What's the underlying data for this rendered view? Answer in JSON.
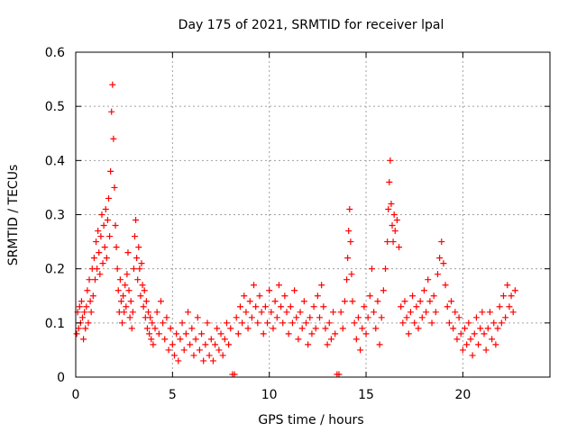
{
  "chart_data": {
    "type": "scatter",
    "title": "Day 175 of 2021, SRMTID for receiver lpal",
    "xlabel": "GPS time / hours",
    "ylabel": "SRMTID / TECUs",
    "xlim": [
      0,
      24.5
    ],
    "ylim": [
      0,
      0.6
    ],
    "xticks": [
      0,
      5,
      10,
      15,
      20
    ],
    "xtick_labels": [
      "0",
      "5",
      "10",
      "15",
      "20"
    ],
    "yticks": [
      0,
      0.1,
      0.2,
      0.3,
      0.4,
      0.5,
      0.6
    ],
    "ytick_labels": [
      "0",
      "0.1",
      "0.2",
      "0.3",
      "0.4",
      "0.5",
      "0.6"
    ],
    "grid": true,
    "marker": "+",
    "color": "#ff0000",
    "series": [
      {
        "name": "SRMTID",
        "points": [
          [
            0.05,
            0.08
          ],
          [
            0.1,
            0.12
          ],
          [
            0.15,
            0.09
          ],
          [
            0.2,
            0.13
          ],
          [
            0.25,
            0.1
          ],
          [
            0.3,
            0.14
          ],
          [
            0.35,
            0.11
          ],
          [
            0.4,
            0.07
          ],
          [
            0.45,
            0.12
          ],
          [
            0.5,
            0.09
          ],
          [
            0.55,
            0.13
          ],
          [
            0.6,
            0.16
          ],
          [
            0.65,
            0.1
          ],
          [
            0.7,
            0.18
          ],
          [
            0.75,
            0.14
          ],
          [
            0.8,
            0.12
          ],
          [
            0.85,
            0.2
          ],
          [
            0.9,
            0.15
          ],
          [
            0.95,
            0.22
          ],
          [
            1.0,
            0.18
          ],
          [
            1.05,
            0.25
          ],
          [
            1.1,
            0.2
          ],
          [
            1.15,
            0.27
          ],
          [
            1.2,
            0.23
          ],
          [
            1.25,
            0.19
          ],
          [
            1.3,
            0.26
          ],
          [
            1.35,
            0.3
          ],
          [
            1.4,
            0.21
          ],
          [
            1.45,
            0.28
          ],
          [
            1.5,
            0.24
          ],
          [
            1.55,
            0.31
          ],
          [
            1.6,
            0.22
          ],
          [
            1.65,
            0.29
          ],
          [
            1.7,
            0.33
          ],
          [
            1.75,
            0.26
          ],
          [
            1.8,
            0.38
          ],
          [
            1.85,
            0.49
          ],
          [
            1.9,
            0.54
          ],
          [
            1.95,
            0.44
          ],
          [
            2.0,
            0.35
          ],
          [
            2.05,
            0.28
          ],
          [
            2.1,
            0.24
          ],
          [
            2.15,
            0.2
          ],
          [
            2.2,
            0.16
          ],
          [
            2.25,
            0.12
          ],
          [
            2.3,
            0.18
          ],
          [
            2.35,
            0.14
          ],
          [
            2.4,
            0.1
          ],
          [
            2.45,
            0.15
          ],
          [
            2.5,
            0.12
          ],
          [
            2.55,
            0.17
          ],
          [
            2.6,
            0.13
          ],
          [
            2.65,
            0.19
          ],
          [
            2.7,
            0.23
          ],
          [
            2.75,
            0.16
          ],
          [
            2.8,
            0.11
          ],
          [
            2.85,
            0.14
          ],
          [
            2.9,
            0.09
          ],
          [
            2.95,
            0.12
          ],
          [
            3.0,
            0.2
          ],
          [
            3.05,
            0.26
          ],
          [
            3.1,
            0.29
          ],
          [
            3.15,
            0.22
          ],
          [
            3.2,
            0.18
          ],
          [
            3.25,
            0.24
          ],
          [
            3.3,
            0.2
          ],
          [
            3.35,
            0.15
          ],
          [
            3.4,
            0.21
          ],
          [
            3.45,
            0.17
          ],
          [
            3.5,
            0.13
          ],
          [
            3.55,
            0.16
          ],
          [
            3.6,
            0.11
          ],
          [
            3.65,
            0.14
          ],
          [
            3.7,
            0.09
          ],
          [
            3.75,
            0.12
          ],
          [
            3.8,
            0.08
          ],
          [
            3.85,
            0.11
          ],
          [
            3.9,
            0.07
          ],
          [
            3.95,
            0.1
          ],
          [
            4.0,
            0.06
          ],
          [
            4.1,
            0.09
          ],
          [
            4.2,
            0.12
          ],
          [
            4.3,
            0.08
          ],
          [
            4.4,
            0.14
          ],
          [
            4.5,
            0.1
          ],
          [
            4.6,
            0.07
          ],
          [
            4.7,
            0.11
          ],
          [
            4.8,
            0.05
          ],
          [
            4.9,
            0.09
          ],
          [
            5.0,
            0.06
          ],
          [
            5.1,
            0.04
          ],
          [
            5.2,
            0.08
          ],
          [
            5.3,
            0.03
          ],
          [
            5.4,
            0.07
          ],
          [
            5.5,
            0.1
          ],
          [
            5.6,
            0.05
          ],
          [
            5.7,
            0.08
          ],
          [
            5.8,
            0.12
          ],
          [
            5.9,
            0.06
          ],
          [
            6.0,
            0.09
          ],
          [
            6.1,
            0.04
          ],
          [
            6.2,
            0.07
          ],
          [
            6.3,
            0.11
          ],
          [
            6.4,
            0.05
          ],
          [
            6.5,
            0.08
          ],
          [
            6.6,
            0.03
          ],
          [
            6.7,
            0.06
          ],
          [
            6.8,
            0.1
          ],
          [
            6.9,
            0.04
          ],
          [
            7.0,
            0.07
          ],
          [
            7.1,
            0.03
          ],
          [
            7.2,
            0.06
          ],
          [
            7.3,
            0.09
          ],
          [
            7.4,
            0.05
          ],
          [
            7.5,
            0.08
          ],
          [
            7.6,
            0.04
          ],
          [
            7.7,
            0.07
          ],
          [
            7.8,
            0.1
          ],
          [
            7.9,
            0.06
          ],
          [
            8.0,
            0.09
          ],
          [
            8.1,
            0.005
          ],
          [
            8.2,
            0.005
          ],
          [
            8.3,
            0.11
          ],
          [
            8.4,
            0.08
          ],
          [
            8.5,
            0.13
          ],
          [
            8.6,
            0.1
          ],
          [
            8.7,
            0.15
          ],
          [
            8.8,
            0.12
          ],
          [
            8.9,
            0.09
          ],
          [
            9.0,
            0.14
          ],
          [
            9.1,
            0.11
          ],
          [
            9.2,
            0.17
          ],
          [
            9.3,
            0.13
          ],
          [
            9.4,
            0.1
          ],
          [
            9.5,
            0.15
          ],
          [
            9.6,
            0.12
          ],
          [
            9.7,
            0.08
          ],
          [
            9.8,
            0.13
          ],
          [
            9.9,
            0.1
          ],
          [
            10.0,
            0.16
          ],
          [
            10.1,
            0.12
          ],
          [
            10.2,
            0.09
          ],
          [
            10.3,
            0.14
          ],
          [
            10.4,
            0.11
          ],
          [
            10.5,
            0.17
          ],
          [
            10.6,
            0.13
          ],
          [
            10.7,
            0.1
          ],
          [
            10.8,
            0.15
          ],
          [
            10.9,
            0.12
          ],
          [
            11.0,
            0.08
          ],
          [
            11.1,
            0.13
          ],
          [
            11.2,
            0.1
          ],
          [
            11.3,
            0.16
          ],
          [
            11.4,
            0.11
          ],
          [
            11.5,
            0.07
          ],
          [
            11.6,
            0.12
          ],
          [
            11.7,
            0.09
          ],
          [
            11.8,
            0.14
          ],
          [
            11.9,
            0.1
          ],
          [
            12.0,
            0.06
          ],
          [
            12.1,
            0.11
          ],
          [
            12.2,
            0.08
          ],
          [
            12.3,
            0.13
          ],
          [
            12.4,
            0.09
          ],
          [
            12.5,
            0.15
          ],
          [
            12.6,
            0.11
          ],
          [
            12.7,
            0.17
          ],
          [
            12.8,
            0.13
          ],
          [
            12.9,
            0.09
          ],
          [
            13.0,
            0.06
          ],
          [
            13.1,
            0.1
          ],
          [
            13.2,
            0.07
          ],
          [
            13.3,
            0.12
          ],
          [
            13.4,
            0.08
          ],
          [
            13.5,
            0.005
          ],
          [
            13.6,
            0.005
          ],
          [
            13.7,
            0.12
          ],
          [
            13.8,
            0.09
          ],
          [
            13.9,
            0.14
          ],
          [
            14.0,
            0.18
          ],
          [
            14.05,
            0.22
          ],
          [
            14.1,
            0.27
          ],
          [
            14.15,
            0.31
          ],
          [
            14.2,
            0.25
          ],
          [
            14.25,
            0.19
          ],
          [
            14.3,
            0.14
          ],
          [
            14.4,
            0.1
          ],
          [
            14.5,
            0.07
          ],
          [
            14.6,
            0.11
          ],
          [
            14.7,
            0.05
          ],
          [
            14.8,
            0.09
          ],
          [
            14.9,
            0.13
          ],
          [
            15.0,
            0.08
          ],
          [
            15.1,
            0.11
          ],
          [
            15.2,
            0.15
          ],
          [
            15.3,
            0.2
          ],
          [
            15.4,
            0.12
          ],
          [
            15.5,
            0.09
          ],
          [
            15.6,
            0.14
          ],
          [
            15.7,
            0.06
          ],
          [
            15.8,
            0.11
          ],
          [
            15.9,
            0.16
          ],
          [
            16.0,
            0.2
          ],
          [
            16.1,
            0.25
          ],
          [
            16.15,
            0.31
          ],
          [
            16.2,
            0.36
          ],
          [
            16.25,
            0.4
          ],
          [
            16.3,
            0.32
          ],
          [
            16.35,
            0.28
          ],
          [
            16.4,
            0.25
          ],
          [
            16.45,
            0.3
          ],
          [
            16.5,
            0.27
          ],
          [
            16.6,
            0.29
          ],
          [
            16.7,
            0.24
          ],
          [
            16.8,
            0.13
          ],
          [
            16.9,
            0.1
          ],
          [
            17.0,
            0.14
          ],
          [
            17.1,
            0.11
          ],
          [
            17.2,
            0.08
          ],
          [
            17.3,
            0.12
          ],
          [
            17.4,
            0.15
          ],
          [
            17.5,
            0.1
          ],
          [
            17.6,
            0.13
          ],
          [
            17.7,
            0.09
          ],
          [
            17.8,
            0.14
          ],
          [
            17.9,
            0.11
          ],
          [
            18.0,
            0.16
          ],
          [
            18.1,
            0.12
          ],
          [
            18.2,
            0.18
          ],
          [
            18.3,
            0.14
          ],
          [
            18.4,
            0.1
          ],
          [
            18.5,
            0.15
          ],
          [
            18.6,
            0.12
          ],
          [
            18.7,
            0.19
          ],
          [
            18.8,
            0.22
          ],
          [
            18.9,
            0.25
          ],
          [
            19.0,
            0.21
          ],
          [
            19.1,
            0.17
          ],
          [
            19.2,
            0.13
          ],
          [
            19.3,
            0.1
          ],
          [
            19.4,
            0.14
          ],
          [
            19.5,
            0.09
          ],
          [
            19.6,
            0.12
          ],
          [
            19.7,
            0.07
          ],
          [
            19.8,
            0.11
          ],
          [
            19.9,
            0.08
          ],
          [
            20.0,
            0.05
          ],
          [
            20.1,
            0.09
          ],
          [
            20.2,
            0.06
          ],
          [
            20.3,
            0.1
          ],
          [
            20.4,
            0.07
          ],
          [
            20.5,
            0.04
          ],
          [
            20.6,
            0.08
          ],
          [
            20.7,
            0.11
          ],
          [
            20.8,
            0.06
          ],
          [
            20.9,
            0.09
          ],
          [
            21.0,
            0.12
          ],
          [
            21.1,
            0.08
          ],
          [
            21.2,
            0.05
          ],
          [
            21.3,
            0.09
          ],
          [
            21.4,
            0.12
          ],
          [
            21.5,
            0.07
          ],
          [
            21.6,
            0.1
          ],
          [
            21.7,
            0.06
          ],
          [
            21.8,
            0.09
          ],
          [
            21.9,
            0.13
          ],
          [
            22.0,
            0.1
          ],
          [
            22.1,
            0.15
          ],
          [
            22.2,
            0.11
          ],
          [
            22.3,
            0.17
          ],
          [
            22.4,
            0.13
          ],
          [
            22.5,
            0.15
          ],
          [
            22.6,
            0.12
          ],
          [
            22.7,
            0.16
          ]
        ]
      }
    ]
  }
}
